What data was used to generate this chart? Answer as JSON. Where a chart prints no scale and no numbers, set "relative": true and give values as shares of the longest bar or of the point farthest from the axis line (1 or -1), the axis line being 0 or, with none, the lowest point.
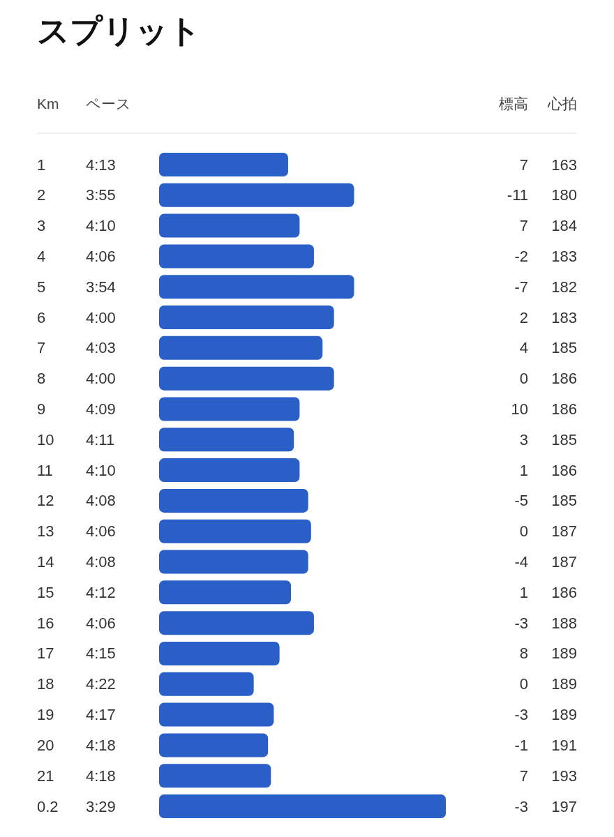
{
  "chart_data": [
    {
      "type": "bar",
      "orientation": "horizontal",
      "relative": true,
      "title": "スプリット",
      "ylabel": "Km",
      "xlabel": "ペース",
      "categories": [
        "1",
        "2",
        "3",
        "4",
        "5",
        "6",
        "7",
        "8",
        "9",
        "10",
        "11",
        "12",
        "13",
        "14",
        "15",
        "16",
        "17",
        "18",
        "19",
        "20",
        "21",
        "0.2"
      ],
      "series": [
        {
          "color": "#2a5fc8",
          "values": [
            0.45,
            0.68,
            0.49,
            0.54,
            0.68,
            0.61,
            0.57,
            0.61,
            0.49,
            0.47,
            0.49,
            0.52,
            0.53,
            0.52,
            0.46,
            0.54,
            0.42,
            0.33,
            0.4,
            0.38,
            0.39,
            1
          ]
        }
      ],
      "annotations": [
        "4:13",
        "3:55",
        "4:10",
        "4:06",
        "3:54",
        "4:00",
        "4:03",
        "4:00",
        "4:09",
        "4:11",
        "4:10",
        "4:08",
        "4:06",
        "4:08",
        "4:12",
        "4:06",
        "4:15",
        "4:22",
        "4:17",
        "4:18",
        "4:18",
        "3:29"
      ]
    },
    {
      "type": "other",
      "title": "標高",
      "data_labels": true,
      "values": [
        7,
        -11,
        7,
        -2,
        -7,
        2,
        4,
        0,
        10,
        3,
        1,
        -5,
        0,
        -4,
        1,
        -3,
        8,
        0,
        -3,
        -1,
        7,
        -3
      ]
    },
    {
      "type": "other",
      "title": "心拍",
      "data_labels": true,
      "values": [
        163,
        180,
        184,
        183,
        182,
        183,
        185,
        186,
        186,
        185,
        186,
        185,
        187,
        187,
        186,
        188,
        189,
        189,
        189,
        191,
        193,
        197
      ]
    }
  ]
}
